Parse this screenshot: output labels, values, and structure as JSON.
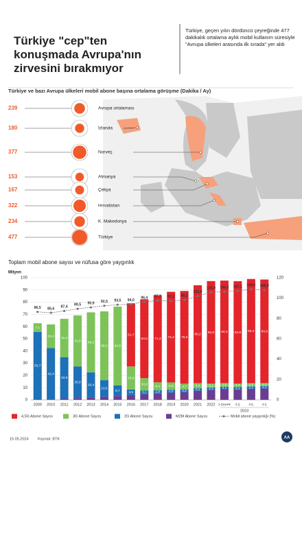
{
  "header": {
    "title": "Türkiye \"cep\"ten konuşmada Avrupa'nın zirvesini bırakmıyor",
    "note": "Türkiye, geçen yılın dördüncü çeyreğinde 477 dakikalık ortalama aylık mobil kullanım süresiyle \"Avrupa ülkeleri arasında ilk sırada\" yer aldı"
  },
  "chart_data": [
    {
      "type": "bubble",
      "title": "Türkiye ve bazı Avrupa ülkeleri mobil abone başına ortalama görüşme (Dakika / Ay)",
      "categories": [
        "Avrupa ortalaması",
        "İzlanda",
        "Norveç",
        "Almanya",
        "Çekya",
        "Hırvatistan",
        "K. Makedonya",
        "Türkiye"
      ],
      "values": [
        239,
        180,
        377,
        153,
        167,
        322,
        234,
        477
      ],
      "color": "#f15a29"
    },
    {
      "type": "stacked-bar-line",
      "title": "Toplam mobil abone sayısı ve nüfusa göre yaygınlık",
      "ylabel": "Milyon",
      "categories": [
        "2009",
        "2010",
        "2011",
        "2012",
        "2013",
        "2014",
        "2015",
        "2016",
        "2017",
        "2018",
        "2019",
        "2020",
        "2021",
        "2022",
        "1.Çeyrek",
        "2.Ç",
        "3.Ç",
        "4.Ç"
      ],
      "group_label": "2023",
      "ylim": [
        0,
        100
      ],
      "yticks": [
        0,
        10,
        20,
        30,
        40,
        50,
        60,
        70,
        80,
        90,
        100
      ],
      "y2lim": [
        0,
        120
      ],
      "y2ticks": [
        0,
        20,
        40,
        60,
        80,
        100,
        120
      ],
      "grid": true,
      "series": [
        {
          "name": "4,5G Abone Sayısı",
          "color": "#e3242b",
          "values": [
            null,
            null,
            null,
            null,
            null,
            null,
            null,
            51.7,
            64.6,
            71.3,
            74.2,
            75.9,
            80.2,
            84.0,
            84.0,
            83.9,
            85.4,
            84.9
          ],
          "value_labels": [
            null,
            null,
            null,
            null,
            null,
            null,
            null,
            "51,7",
            "64,6",
            "71,3",
            "74,2",
            "75,9",
            "80,2",
            "84,0",
            "84,0",
            "83,9",
            "85,4",
            "84,9"
          ]
        },
        {
          "name": "3G Abone Sayısı",
          "color": "#7dc35a",
          "values": [
            7.1,
            19.4,
            31.4,
            41.8,
            49.2,
            56.3,
            64.5,
            18.9,
            10.2,
            6.4,
            5.9,
            4.7,
            4.2,
            3.1,
            2.9,
            2.7,
            2.5,
            2.3
          ],
          "value_labels": [
            "7,1",
            "19,4",
            "31,4",
            "41,8",
            "49,2",
            "56,3",
            "64,5",
            "18,9",
            "10,2",
            "6,4",
            "5,9",
            "4,7",
            "4,2",
            "3,1",
            "2,9",
            "2,7",
            "2,5",
            "2,3"
          ]
        },
        {
          "name": "2G Abone Sayısı",
          "color": "#1d71b8",
          "values": [
            55.7,
            42.4,
            33.9,
            25.9,
            20.4,
            13.6,
            8.7,
            4.5,
            3.1,
            2.8,
            2.5,
            2.2,
            2.1,
            2.1,
            2.1,
            2.1,
            2.1,
            2.1
          ],
          "value_labels": [
            "55,7",
            "42,4",
            "33,9",
            "25,9",
            "20,4",
            "13,6",
            "8,7",
            "4,5",
            "3,1",
            "2,8",
            "2,5",
            "2,2",
            "2,1",
            "2,1",
            "2,1",
            "2,1",
            "2,1",
            "2,1"
          ]
        },
        {
          "name": "M2M Abone Sayısı",
          "color": "#6a3d91",
          "values": [
            null,
            null,
            1.1,
            1.5,
            2.1,
            2.6,
            3.2,
            4.0,
            4.5,
            5.2,
            5.9,
            6.4,
            7.4,
            8.1,
            8.7,
            8.5,
            9.0,
            9.3
          ],
          "value_labels": [
            null,
            null,
            "1,1",
            "1,5",
            "2,1",
            "2,6",
            "3,2",
            "4,0",
            "4,5",
            "5,2",
            "5,9",
            "6,4",
            "7,4",
            "8,1",
            "8,7",
            "8,5",
            "9,0",
            "9,3"
          ]
        },
        {
          "name": "Mobil abone yaygınlığı (%)",
          "type": "line",
          "axis": "y2",
          "color": "#777777",
          "values": [
            86.5,
            85.6,
            87.4,
            89.5,
            90.9,
            92.5,
            93.5,
            94.0,
            96.4,
            97.7,
            97.2,
            98.2,
            101.9,
            105.9,
            106.3,
            107.1,
            108.8,
            108.0
          ],
          "value_labels": [
            "86,5",
            "85,6",
            "87,4",
            "89,5",
            "90,9",
            "92,5",
            "93,5",
            "94,0",
            "96,4",
            "97,7",
            "97,2",
            "98,2",
            "101,9",
            "105,9",
            "106,3",
            "107,1",
            "108,8",
            "108,0"
          ]
        }
      ]
    }
  ],
  "footer": {
    "date": "15.05.2024",
    "source": "Kaynak: BTK",
    "logo": "AA"
  }
}
